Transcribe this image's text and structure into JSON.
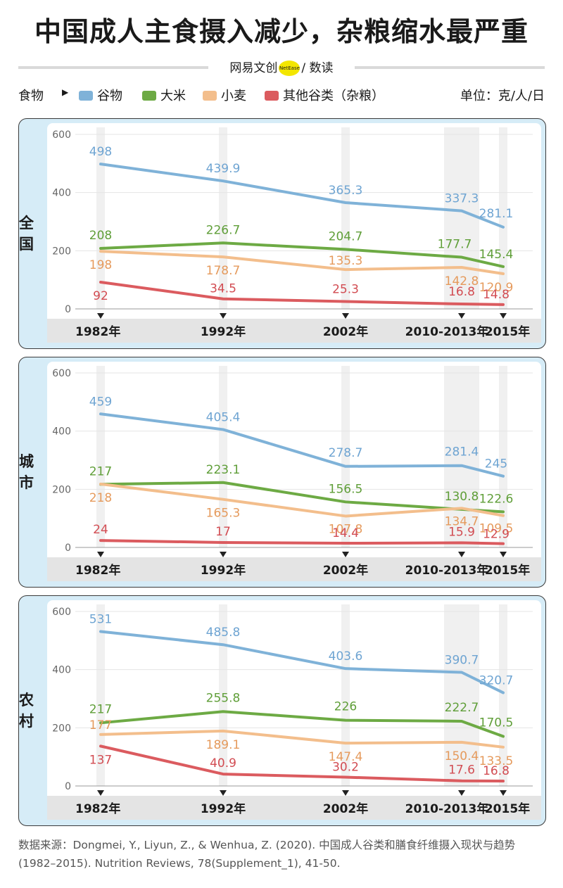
{
  "header": {
    "title": "中国成人主食摄入减少，杂粮缩水最严重",
    "brand_left": "网易文创",
    "brand_dot": "NetEase",
    "brand_right": "/ 数读"
  },
  "legend": {
    "prefix": "食物",
    "items": [
      {
        "label": "谷物",
        "color": "#7fb2d8"
      },
      {
        "label": "大米",
        "color": "#6daa44"
      },
      {
        "label": "小麦",
        "color": "#f3be8c"
      },
      {
        "label": "其他谷类（杂粮）",
        "color": "#db5b5f"
      }
    ],
    "unit": "单位：克/人/日"
  },
  "chart_data": [
    {
      "type": "line",
      "panel_label": "全国",
      "x": [
        "1982年",
        "1992年",
        "2002年",
        "2010-2013年",
        "2015年"
      ],
      "ylim": [
        0,
        600
      ],
      "yticks": [
        0,
        200,
        400,
        600
      ],
      "series": [
        {
          "name": "谷物",
          "color": "#7fb2d8",
          "label_color": "#6ea4d2",
          "values": [
            498,
            439.9,
            365.3,
            337.3,
            281.1
          ]
        },
        {
          "name": "大米",
          "color": "#6daa44",
          "label_color": "#5f9e38",
          "values": [
            208,
            226.7,
            204.7,
            177.7,
            145.4
          ]
        },
        {
          "name": "小麦",
          "color": "#f3be8c",
          "label_color": "#e59a5c",
          "values": [
            198,
            178.7,
            135.3,
            142.8,
            120.9
          ]
        },
        {
          "name": "其他谷类（杂粮）",
          "color": "#db5b5f",
          "label_color": "#d24c52",
          "values": [
            92,
            34.5,
            25.3,
            16.8,
            14.8
          ]
        }
      ]
    },
    {
      "type": "line",
      "panel_label": "城市",
      "x": [
        "1982年",
        "1992年",
        "2002年",
        "2010-2013年",
        "2015年"
      ],
      "ylim": [
        0,
        600
      ],
      "yticks": [
        0,
        200,
        400,
        600
      ],
      "series": [
        {
          "name": "谷物",
          "color": "#7fb2d8",
          "label_color": "#6ea4d2",
          "values": [
            459,
            405.4,
            278.7,
            281.4,
            245
          ]
        },
        {
          "name": "大米",
          "color": "#6daa44",
          "label_color": "#5f9e38",
          "values": [
            217,
            223.1,
            156.5,
            130.8,
            122.6
          ]
        },
        {
          "name": "小麦",
          "color": "#f3be8c",
          "label_color": "#e59a5c",
          "values": [
            218,
            165.3,
            107.8,
            134.7,
            109.5
          ]
        },
        {
          "name": "其他谷类（杂粮）",
          "color": "#db5b5f",
          "label_color": "#d24c52",
          "values": [
            24,
            17,
            14.4,
            15.9,
            12.9
          ]
        }
      ]
    },
    {
      "type": "line",
      "panel_label": "农村",
      "x": [
        "1982年",
        "1992年",
        "2002年",
        "2010-2013年",
        "2015年"
      ],
      "ylim": [
        0,
        600
      ],
      "yticks": [
        0,
        200,
        400,
        600
      ],
      "series": [
        {
          "name": "谷物",
          "color": "#7fb2d8",
          "label_color": "#6ea4d2",
          "values": [
            531,
            485.8,
            403.6,
            390.7,
            320.7
          ]
        },
        {
          "name": "大米",
          "color": "#6daa44",
          "label_color": "#5f9e38",
          "values": [
            217,
            255.8,
            226,
            222.7,
            170.5
          ]
        },
        {
          "name": "小麦",
          "color": "#f3be8c",
          "label_color": "#e59a5c",
          "values": [
            177,
            189.1,
            147.4,
            150.4,
            133.5
          ]
        },
        {
          "name": "其他谷类（杂粮）",
          "color": "#db5b5f",
          "label_color": "#d24c52",
          "values": [
            137,
            40.9,
            30.2,
            17.6,
            16.8
          ]
        }
      ]
    }
  ],
  "source": "数据来源：Dongmei, Y., Liyun, Z., & Wenhua, Z. (2020). 中国成人谷类和膳食纤维摄入现状与趋势 (1982–2015). Nutrition Reviews, 78(Supplement_1), 41-50."
}
